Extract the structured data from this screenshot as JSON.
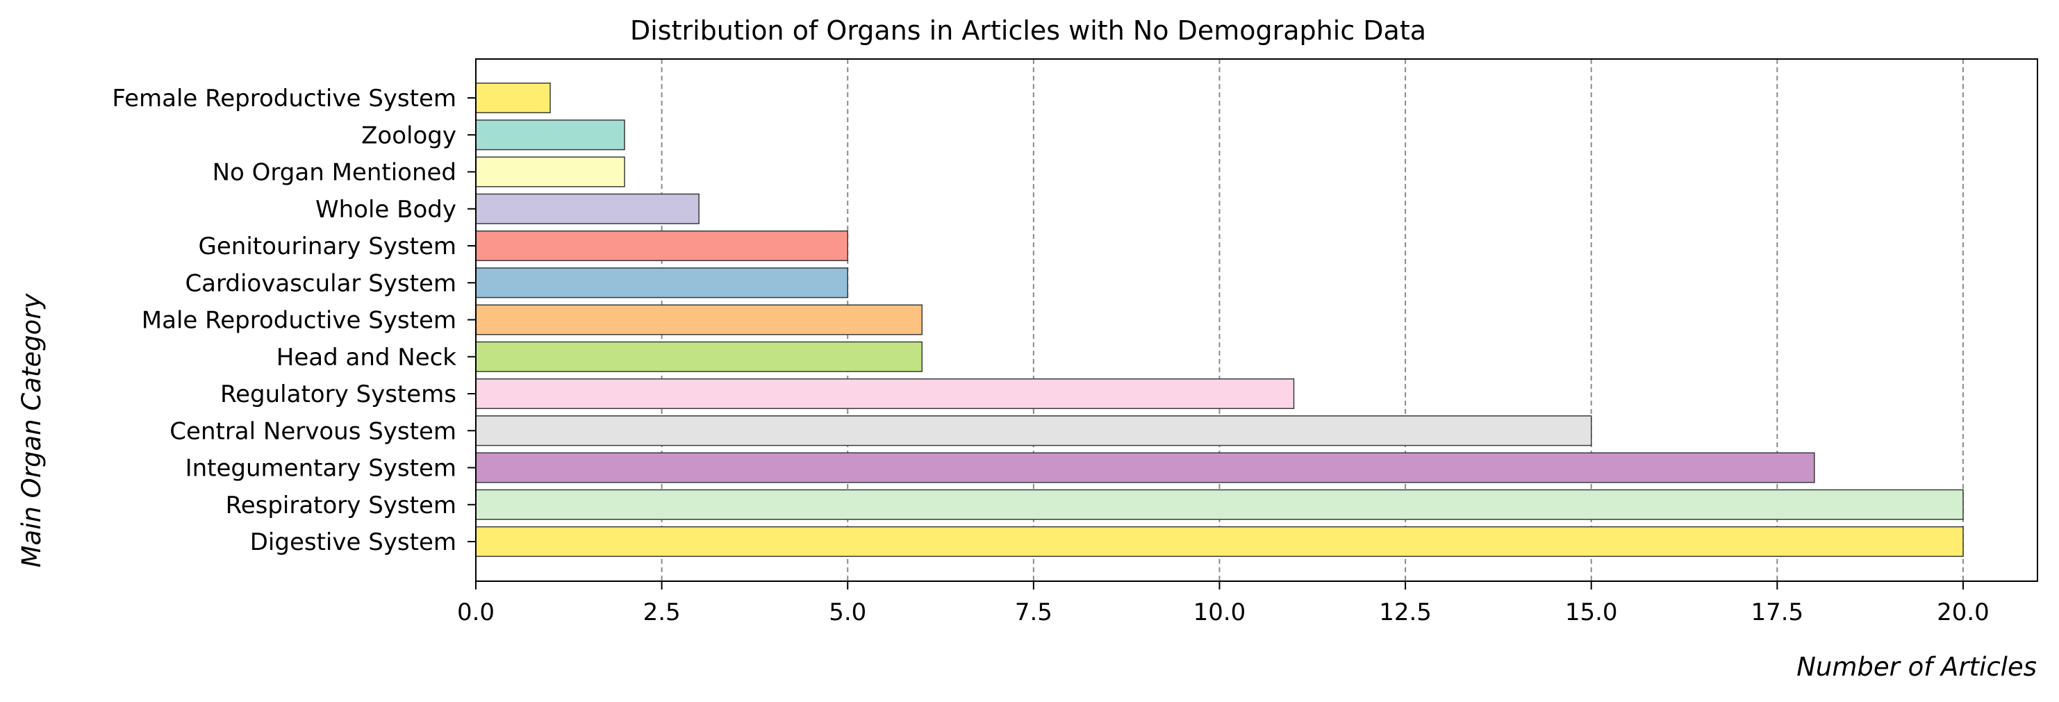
{
  "chart_data": {
    "type": "bar",
    "orientation": "horizontal",
    "title": "Distribution of Organs in Articles with No Demographic Data",
    "xlabel": "Number of Articles",
    "ylabel": "Main Organ Category",
    "xlim": [
      0,
      21
    ],
    "xticks": [
      "0.0",
      "2.5",
      "5.0",
      "7.5",
      "10.0",
      "12.5",
      "15.0",
      "17.5",
      "20.0"
    ],
    "grid": "x-dashed",
    "categories": [
      "Digestive System",
      "Respiratory System",
      "Integumentary System",
      "Central Nervous System",
      "Regulatory Systems",
      "Head and Neck",
      "Male Reproductive System",
      "Cardiovascular System",
      "Genitourinary System",
      "Whole Body",
      "No Organ Mentioned",
      "Zoology",
      "Female Reproductive System"
    ],
    "values": [
      20,
      20,
      18,
      15,
      11,
      6,
      6,
      5,
      5,
      3,
      2,
      2,
      1
    ],
    "colors": [
      "#ffed6f",
      "#d4efd0",
      "#c994c7",
      "#e3e3e3",
      "#fcd5e6",
      "#c2e383",
      "#fdc280",
      "#96bfda",
      "#fb968c",
      "#c9c5e0",
      "#fdfdbd",
      "#a3ded3",
      "#ffed6f"
    ]
  }
}
